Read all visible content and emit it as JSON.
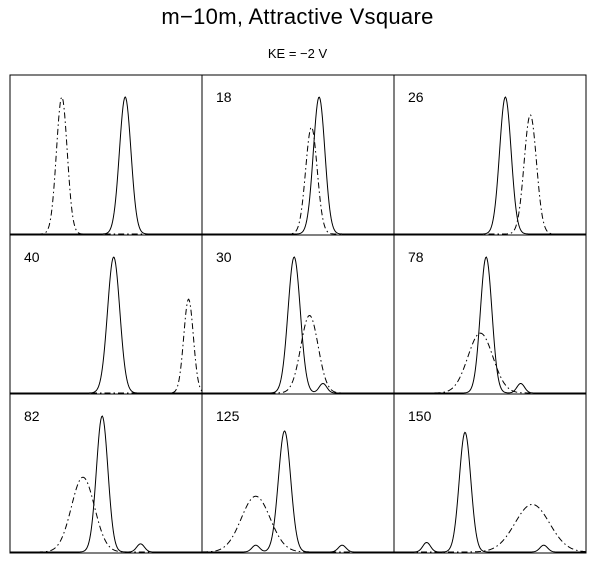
{
  "chart_data": {
    "type": "line",
    "title": "m−10m, Attractive Vsquare",
    "subtitle": "KE = −2 V",
    "grid": false,
    "legend": "none",
    "panels": [
      {
        "label": "",
        "series": [
          {
            "style": "solid",
            "peaks": [
              {
                "x": 0.6,
                "h": 1.0,
                "w": 0.03
              }
            ]
          },
          {
            "style": "dashdot",
            "peaks": [
              {
                "x": 0.27,
                "h": 1.0,
                "w": 0.028
              }
            ]
          }
        ]
      },
      {
        "label": "18",
        "series": [
          {
            "style": "solid",
            "peaks": [
              {
                "x": 0.61,
                "h": 1.0,
                "w": 0.03
              }
            ]
          },
          {
            "style": "dashdot",
            "peaks": [
              {
                "x": 0.57,
                "h": 0.78,
                "w": 0.03
              }
            ]
          }
        ]
      },
      {
        "label": "26",
        "series": [
          {
            "style": "solid",
            "peaks": [
              {
                "x": 0.58,
                "h": 1.0,
                "w": 0.03
              }
            ]
          },
          {
            "style": "dashdot",
            "peaks": [
              {
                "x": 0.71,
                "h": 0.87,
                "w": 0.032
              }
            ]
          }
        ]
      },
      {
        "label": "40",
        "series": [
          {
            "style": "solid",
            "peaks": [
              {
                "x": 0.54,
                "h": 1.0,
                "w": 0.032
              }
            ]
          },
          {
            "style": "dashdot",
            "peaks": [
              {
                "x": 0.93,
                "h": 0.69,
                "w": 0.025
              }
            ]
          }
        ]
      },
      {
        "label": "30",
        "series": [
          {
            "style": "solid",
            "peaks": [
              {
                "x": 0.48,
                "h": 1.0,
                "w": 0.032
              },
              {
                "x": 0.63,
                "h": 0.07,
                "w": 0.02
              }
            ]
          },
          {
            "style": "dashdot",
            "peaks": [
              {
                "x": 0.56,
                "h": 0.57,
                "w": 0.045
              }
            ]
          }
        ]
      },
      {
        "label": "78",
        "series": [
          {
            "style": "solid",
            "peaks": [
              {
                "x": 0.48,
                "h": 1.0,
                "w": 0.03
              },
              {
                "x": 0.66,
                "h": 0.07,
                "w": 0.02
              }
            ]
          },
          {
            "style": "dashdot",
            "peaks": [
              {
                "x": 0.45,
                "h": 0.44,
                "w": 0.065
              }
            ]
          }
        ]
      },
      {
        "label": "82",
        "series": [
          {
            "style": "solid",
            "peaks": [
              {
                "x": 0.48,
                "h": 1.0,
                "w": 0.03
              },
              {
                "x": 0.68,
                "h": 0.06,
                "w": 0.02
              }
            ]
          },
          {
            "style": "dashdot",
            "peaks": [
              {
                "x": 0.38,
                "h": 0.55,
                "w": 0.06
              }
            ]
          }
        ]
      },
      {
        "label": "125",
        "series": [
          {
            "style": "solid",
            "peaks": [
              {
                "x": 0.43,
                "h": 0.89,
                "w": 0.032
              },
              {
                "x": 0.28,
                "h": 0.05,
                "w": 0.02
              },
              {
                "x": 0.73,
                "h": 0.05,
                "w": 0.02
              }
            ]
          },
          {
            "style": "dashdot",
            "peaks": [
              {
                "x": 0.28,
                "h": 0.41,
                "w": 0.075
              }
            ]
          }
        ]
      },
      {
        "label": "150",
        "series": [
          {
            "style": "solid",
            "peaks": [
              {
                "x": 0.37,
                "h": 0.88,
                "w": 0.03
              },
              {
                "x": 0.17,
                "h": 0.07,
                "w": 0.02
              },
              {
                "x": 0.78,
                "h": 0.05,
                "w": 0.02
              }
            ]
          },
          {
            "style": "dashdot",
            "peaks": [
              {
                "x": 0.72,
                "h": 0.35,
                "w": 0.09
              }
            ]
          }
        ]
      }
    ]
  }
}
